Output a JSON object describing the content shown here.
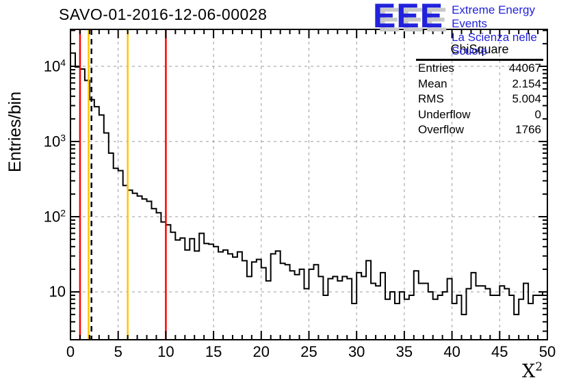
{
  "title": "SAVO-01-2016-12-06-00028",
  "logo": {
    "acronym": "EEE",
    "line1": "Extreme Energy Events",
    "line2": "La Scienza nelle Scuole",
    "color": "#2222dd",
    "shadow_color": "#c8c8c8"
  },
  "stats": {
    "title": "ChiSquare",
    "rows": [
      {
        "label": "Entries",
        "value": "44067"
      },
      {
        "label": "Mean",
        "value": "2.154"
      },
      {
        "label": "RMS",
        "value": "5.004"
      },
      {
        "label": "Underflow",
        "value": "0"
      },
      {
        "label": "Overflow",
        "value": "1766"
      }
    ]
  },
  "axes": {
    "y_title": "Entries/bin",
    "x_title_base": "X",
    "x_title_exp": "2",
    "x_tick_labels": [
      "0",
      "5",
      "10",
      "15",
      "20",
      "25",
      "30",
      "35",
      "40",
      "45",
      "50"
    ],
    "x_tick_values": [
      0,
      5,
      10,
      15,
      20,
      25,
      30,
      35,
      40,
      45,
      50
    ],
    "y_tick_base": "10",
    "y_tick_exponents": [
      "4",
      "3",
      "2",
      ""
    ],
    "y_tick_values": [
      10000,
      1000,
      100,
      10
    ]
  },
  "chart_data": {
    "type": "bar",
    "style": "ROOT step-histogram outline, log y scale",
    "title": "SAVO-01-2016-12-06-00028",
    "xlabel": "X^2",
    "ylabel": "Entries/bin",
    "xlim": [
      0,
      50
    ],
    "ylim": [
      2.3,
      31000
    ],
    "y_scale": "log10",
    "bin_start": 0,
    "bin_width": 0.5,
    "values": [
      15000,
      9800,
      9200,
      6500,
      3600,
      2900,
      2250,
      1300,
      700,
      440,
      410,
      260,
      225,
      205,
      188,
      172,
      160,
      128,
      113,
      85,
      78,
      62,
      49,
      52,
      36,
      51,
      35,
      60,
      44,
      43,
      40,
      34,
      36,
      32,
      29,
      34,
      26,
      16,
      25,
      27,
      21,
      14,
      32,
      35,
      24,
      23,
      19,
      17,
      20,
      11,
      20,
      23,
      16,
      9,
      15,
      16,
      14,
      16,
      15,
      7,
      18,
      16,
      26,
      13,
      12,
      18,
      8,
      10,
      7,
      10,
      8,
      9,
      19,
      13,
      13,
      10,
      8,
      9,
      10,
      15,
      7,
      9,
      5,
      11,
      18,
      12,
      12,
      11,
      9,
      9,
      12,
      11,
      9,
      5,
      8,
      13,
      7,
      9,
      9,
      10
    ],
    "line_color": "#000000",
    "grid": {
      "show": true,
      "color": "#999999",
      "dashed": true,
      "x_at": [
        5,
        10,
        15,
        20,
        25,
        30,
        35,
        40,
        45
      ],
      "y_at": [
        10,
        100,
        1000,
        10000
      ]
    },
    "vertical_lines": [
      {
        "x": 1,
        "color": "#ff0000",
        "style": "solid"
      },
      {
        "x": 1.9,
        "color": "#ffc400",
        "style": "solid"
      },
      {
        "x": 2.2,
        "color": "#000000",
        "style": "dashed"
      },
      {
        "x": 6,
        "color": "#ffc400",
        "style": "solid"
      },
      {
        "x": 10,
        "color": "#ff0000",
        "style": "solid"
      }
    ],
    "legend": "none"
  }
}
